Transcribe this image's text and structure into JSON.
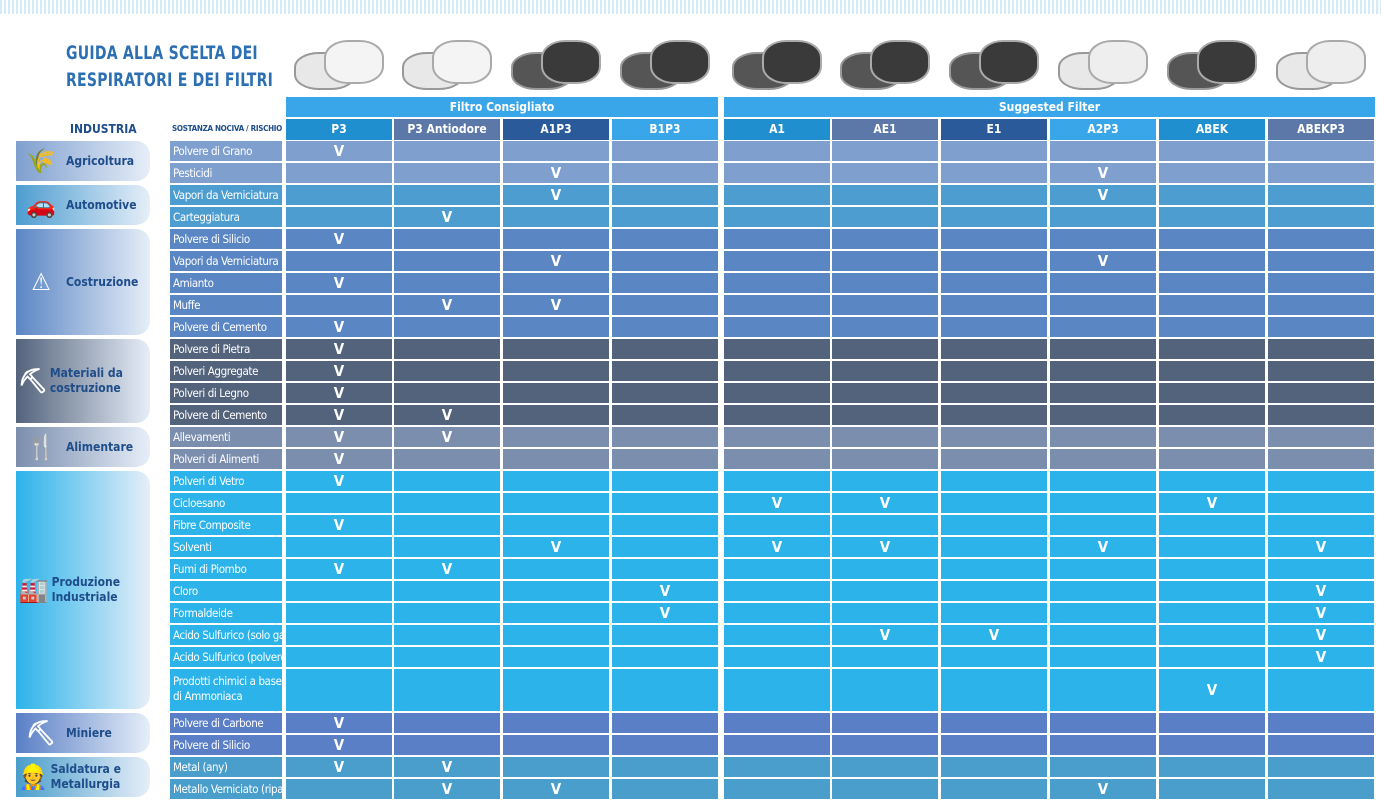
{
  "title_lines": [
    "GUIDA ALLA SCELTA DEI",
    "RESPIRATORI E DEI FILTRI"
  ],
  "group_headers": {
    "left": "Filtro Consigliato",
    "right": "Suggested Filter"
  },
  "industry_header": "INDUSTRIA",
  "substance_header": "SOSTANZA NOCIVA / RISCHIO",
  "check_mark": "V",
  "columns": [
    {
      "label": "P3",
      "color": "#1f8fd0"
    },
    {
      "label": "P3 Antiodore",
      "color": "#5b78a8"
    },
    {
      "label": "A1P3",
      "color": "#2a5a9a"
    },
    {
      "label": "B1P3",
      "color": "#3aa6ea"
    },
    {
      "label": "A1",
      "color": "#1f8fd0"
    },
    {
      "label": "AE1",
      "color": "#5b78a8"
    },
    {
      "label": "E1",
      "color": "#2a5a9a"
    },
    {
      "label": "A2P3",
      "color": "#3aa6ea"
    },
    {
      "label": "ABEK",
      "color": "#1f8fd0"
    },
    {
      "label": "ABEKP3",
      "color": "#5b78a8"
    }
  ],
  "industries": [
    {
      "name": "Agricoltura",
      "icon": "wheat-icon",
      "glyph": "🌾",
      "color": "#7f9fcf",
      "rows": [
        {
          "substance": "Polvere di Grano",
          "checks": [
            "P3"
          ]
        },
        {
          "substance": "Pesticidi",
          "checks": [
            "A1P3",
            "A2P3"
          ]
        }
      ]
    },
    {
      "name": "Automotive",
      "icon": "car-icon",
      "glyph": "🚗",
      "color": "#4d9dd0",
      "rows": [
        {
          "substance": "Vapori da Verniciatura",
          "checks": [
            "A1P3",
            "A2P3"
          ]
        },
        {
          "substance": "Carteggiatura",
          "checks": [
            "P3 Antiodore"
          ]
        }
      ]
    },
    {
      "name": "Costruzione",
      "icon": "construction-worker-icon",
      "glyph": "⚠",
      "color": "#5b86c4",
      "rows": [
        {
          "substance": "Polvere di Silicio",
          "checks": [
            "P3"
          ]
        },
        {
          "substance": "Vapori da Verniciatura",
          "checks": [
            "A1P3",
            "A2P3"
          ]
        },
        {
          "substance": "Amianto",
          "checks": [
            "P3"
          ]
        },
        {
          "substance": "Muffe",
          "checks": [
            "P3 Antiodore",
            "A1P3"
          ]
        },
        {
          "substance": "Polvere di Cemento",
          "checks": [
            "P3"
          ]
        }
      ]
    },
    {
      "name": "Materiali da costruzione",
      "icon": "shovel-icon",
      "glyph": "⛏",
      "color": "#54637c",
      "rows": [
        {
          "substance": "Polvere di Pietra",
          "checks": [
            "P3"
          ]
        },
        {
          "substance": "Polveri Aggregate",
          "checks": [
            "P3"
          ]
        },
        {
          "substance": "Polveri di Legno",
          "checks": [
            "P3"
          ]
        },
        {
          "substance": "Polvere di Cemento",
          "checks": [
            "P3",
            "P3 Antiodore"
          ]
        }
      ]
    },
    {
      "name": "Alimentare",
      "icon": "fork-knife-icon",
      "glyph": "🍴",
      "color": "#7b8eae",
      "rows": [
        {
          "substance": "Allevamenti",
          "checks": [
            "P3",
            "P3 Antiodore"
          ]
        },
        {
          "substance": "Polveri di Alimenti",
          "checks": [
            "P3"
          ]
        }
      ]
    },
    {
      "name": "Produzione Industriale",
      "icon": "factory-icon",
      "glyph": "🏭",
      "color": "#2bb3ea",
      "rows": [
        {
          "substance": "Polveri di Vetro",
          "checks": [
            "P3"
          ]
        },
        {
          "substance": "Cicloesano",
          "checks": [
            "A1",
            "AE1",
            "ABEK"
          ]
        },
        {
          "substance": "Fibre Composite",
          "checks": [
            "P3"
          ]
        },
        {
          "substance": "Solventi",
          "checks": [
            "A1P3",
            "A1",
            "AE1",
            "A2P3",
            "ABEKP3"
          ]
        },
        {
          "substance": "Fumi di Piombo",
          "checks": [
            "P3",
            "P3 Antiodore"
          ]
        },
        {
          "substance": "Cloro",
          "checks": [
            "B1P3",
            "ABEKP3"
          ]
        },
        {
          "substance": "Formaldeide",
          "checks": [
            "B1P3",
            "ABEKP3"
          ]
        },
        {
          "substance": "Acido Sulfurico (solo gas)",
          "checks": [
            "AE1",
            "E1",
            "ABEKP3"
          ]
        },
        {
          "substance": "Acido Sulfurico (polvere)",
          "checks": [
            "ABEKP3"
          ]
        },
        {
          "substance": "Prodotti chimici a base di Ammoniaca",
          "checks": [
            "ABEK"
          ],
          "tall": true
        }
      ]
    },
    {
      "name": "Miniere",
      "icon": "pickaxe-icon",
      "glyph": "⛏",
      "color": "#5a7fc6",
      "rows": [
        {
          "substance": "Polvere di Carbone",
          "checks": [
            "P3"
          ]
        },
        {
          "substance": "Polvere di Silicio",
          "checks": [
            "P3"
          ]
        }
      ]
    },
    {
      "name": "Saldatura e Metallurgia",
      "icon": "welder-icon",
      "glyph": "👷",
      "color": "#4a9ecb",
      "rows": [
        {
          "substance": "Metal (any)",
          "checks": [
            "P3",
            "P3 Antiodore"
          ]
        },
        {
          "substance": "Metallo Verniciato (riparazioni)",
          "checks": [
            "P3 Antiodore",
            "A1P3",
            "A2P3"
          ]
        }
      ]
    }
  ]
}
